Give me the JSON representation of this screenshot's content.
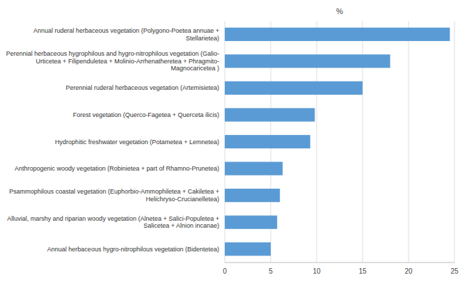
{
  "chart_data": {
    "type": "bar",
    "orientation": "horizontal",
    "xlabel": "%",
    "categories": [
      "Annual herbaceous hygro-nitrophilous vegetation (Bidentetea)",
      "Alluvial, marshy and riparian woody vegetation (Alnetea + Salici-Populetea +\nSalicetea + Alnion incanae)",
      "Psammophilous coastal vegetation (Euphorbio-Ammophiletea + Cakiletea +\nHelichryso-Crucianelletea)",
      "Anthropogenic woody vegetation (Robinietea + part of Rhamno-Prunetea)",
      "Hydrophitic freshwater vegetation (Potametea + Lemnetea)",
      "Forest vegetation (Querco-Fagetea + Querceta ilicis)",
      "Perennial ruderal herbaceous vegetation (Artemisietea)",
      "Perennial herbaceous hygrophilous and hygro-nitrophilous vegetation (Galio-\nUrticetea + Filipenduletea + Molinio-Arrhenatheretea + Phragmito-\nMagnocaricetea )",
      "Annual ruderal herbaceous vegetation (Polygono-Poetea annuae +\nStellarietea)"
    ],
    "values": [
      5.0,
      5.7,
      6.0,
      6.3,
      9.3,
      9.8,
      15.0,
      18.0,
      24.5
    ],
    "color": "#5B9BD5",
    "xlim": [
      0,
      25
    ],
    "xticks": [
      0,
      5,
      10,
      15,
      20,
      25
    ],
    "grid": true
  }
}
